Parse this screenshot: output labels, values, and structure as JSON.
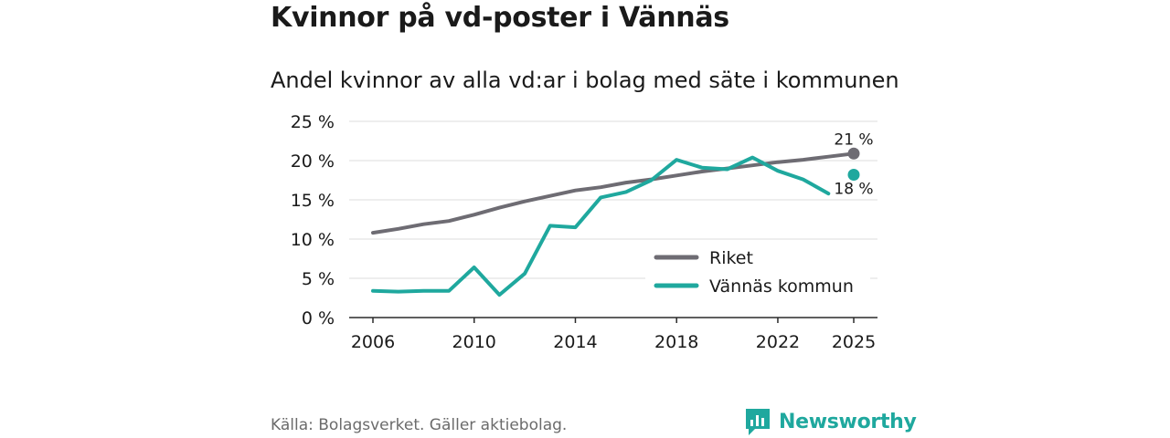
{
  "header": {
    "title": "Kvinnor på vd-poster i Vännäs",
    "subtitle": "Andel kvinnor av alla vd:ar i bolag med säte i kommunen"
  },
  "footer": {
    "source": "Källa: Bolagsverket. Gäller aktiebolag.",
    "brand": "Newsworthy",
    "brand_icon": "newsworthy-logo-icon"
  },
  "chart_data": {
    "type": "line",
    "title": "Kvinnor på vd-poster i Vännäs",
    "subtitle": "Andel kvinnor av alla vd:ar i bolag med säte i kommunen",
    "xlabel": "",
    "ylabel": "",
    "ylim": [
      0,
      25
    ],
    "yticks": [
      0,
      5,
      10,
      15,
      20,
      25
    ],
    "ytick_labels": [
      "0 %",
      "5 %",
      "10 %",
      "15 %",
      "20 %",
      "25 %"
    ],
    "xticks": [
      2006,
      2010,
      2014,
      2018,
      2022,
      2025
    ],
    "xtick_labels": [
      "2006",
      "2010",
      "2014",
      "2018",
      "2022",
      "2025"
    ],
    "xlim": [
      2006,
      2025
    ],
    "grid": true,
    "legend_position": "bottom-right",
    "series": [
      {
        "name": "Riket",
        "color": "#6e6c73",
        "x": [
          2006,
          2007,
          2008,
          2009,
          2010,
          2011,
          2012,
          2013,
          2014,
          2015,
          2016,
          2017,
          2018,
          2019,
          2020,
          2021,
          2022,
          2023,
          2024,
          2025
        ],
        "values": [
          10.8,
          11.3,
          11.9,
          12.3,
          13.1,
          14.0,
          14.8,
          15.5,
          16.2,
          16.6,
          17.2,
          17.6,
          18.1,
          18.6,
          19.0,
          19.4,
          19.8,
          20.1,
          20.5,
          20.9
        ],
        "end_label": "21 %"
      },
      {
        "name": "Vännäs kommun",
        "color": "#1fa89e",
        "x": [
          2006,
          2007,
          2008,
          2009,
          2010,
          2011,
          2012,
          2013,
          2014,
          2015,
          2016,
          2017,
          2018,
          2019,
          2020,
          2021,
          2022,
          2023,
          2024
        ],
        "values": [
          3.4,
          3.3,
          3.4,
          3.4,
          6.4,
          2.9,
          5.6,
          11.7,
          11.5,
          15.3,
          16.0,
          17.5,
          20.1,
          19.1,
          18.9,
          20.4,
          18.7,
          17.6,
          15.8
        ],
        "end_point": {
          "x": 2025,
          "value": 18.2
        },
        "end_label": "18 %"
      }
    ]
  }
}
